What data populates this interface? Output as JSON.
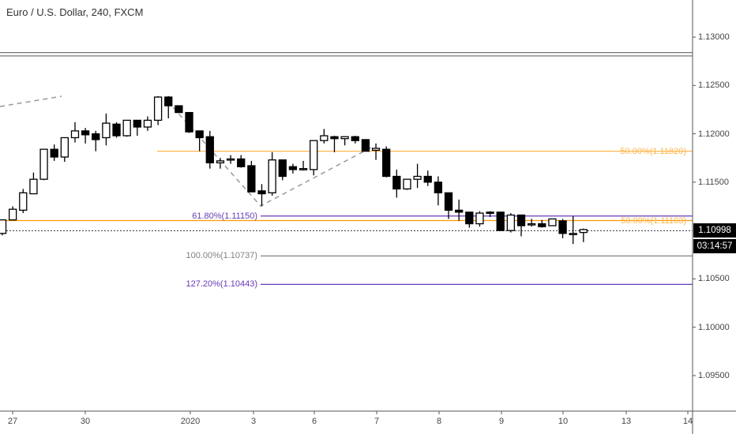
{
  "header": {
    "title": "Euro / U.S. Dollar, 240, FXCM"
  },
  "price_axis": {
    "ticks": [
      "1.13000",
      "1.12500",
      "1.12000",
      "1.11500",
      "1.10500",
      "1.10000",
      "1.09500"
    ],
    "tick_values": [
      1.13,
      1.125,
      1.12,
      1.115,
      1.105,
      1.1,
      1.095
    ]
  },
  "time_axis": {
    "ticks": [
      "27",
      "30",
      "2020",
      "3",
      "6",
      "7",
      "8",
      "9",
      "10",
      "13",
      "14"
    ]
  },
  "current_price": {
    "value": "1.10998",
    "countdown": "03:14:57"
  },
  "colors": {
    "bull": "#ffffff",
    "bear": "#000000",
    "fib_orange": "#ff9800",
    "fib_purple": "#673ab7",
    "fib_grey": "#808080"
  },
  "levels": {
    "orange_upper": {
      "label": "50.00%(1.11820)",
      "price": 1.1182
    },
    "orange_lower": {
      "label": "50.00%(1.11103)",
      "price": 1.11103
    },
    "fib_618": {
      "label": "61.80%(1.11150)",
      "price": 1.1115
    },
    "fib_100": {
      "label": "100.00%(1.10737)",
      "price": 1.10737
    },
    "fib_1272": {
      "label": "127.20%(1.10443)",
      "price": 1.10443
    },
    "top_double_line": {
      "prices": [
        1.1284,
        1.12805
      ]
    }
  },
  "chart_data": {
    "type": "candlestick",
    "title": "Euro / U.S. Dollar, 240, FXCM",
    "ylim": [
      1.0915,
      1.1338
    ],
    "candles": [
      [
        1.1097,
        1.1111,
        1.1095,
        1.1111
      ],
      [
        1.1111,
        1.1125,
        1.1111,
        1.1122
      ],
      [
        1.1121,
        1.1143,
        1.1118,
        1.1139
      ],
      [
        1.1138,
        1.116,
        1.1138,
        1.1153
      ],
      [
        1.1153,
        1.1184,
        1.1152,
        1.1184
      ],
      [
        1.1184,
        1.1189,
        1.1172,
        1.1176
      ],
      [
        1.1176,
        1.1196,
        1.1171,
        1.1196
      ],
      [
        1.1196,
        1.1212,
        1.1191,
        1.1203
      ],
      [
        1.1203,
        1.1206,
        1.119,
        1.1199
      ],
      [
        1.12,
        1.1203,
        1.1182,
        1.1194
      ],
      [
        1.1196,
        1.1221,
        1.1188,
        1.1211
      ],
      [
        1.121,
        1.1212,
        1.1196,
        1.1198
      ],
      [
        1.1198,
        1.1214,
        1.1197,
        1.1214
      ],
      [
        1.1214,
        1.1214,
        1.1198,
        1.1207
      ],
      [
        1.1207,
        1.1218,
        1.1203,
        1.1214
      ],
      [
        1.1214,
        1.1239,
        1.1209,
        1.1238
      ],
      [
        1.1238,
        1.1239,
        1.1216,
        1.1229
      ],
      [
        1.1229,
        1.1229,
        1.1222,
        1.1222
      ],
      [
        1.1222,
        1.1222,
        1.1201,
        1.1202
      ],
      [
        1.1203,
        1.1203,
        1.1182,
        1.1196
      ],
      [
        1.1197,
        1.1203,
        1.1164,
        1.117
      ],
      [
        1.117,
        1.1175,
        1.1164,
        1.1172
      ],
      [
        1.1173,
        1.1178,
        1.1169,
        1.1174
      ],
      [
        1.1174,
        1.1178,
        1.1165,
        1.1166
      ],
      [
        1.1167,
        1.1172,
        1.114,
        1.114
      ],
      [
        1.1141,
        1.1148,
        1.1125,
        1.1138
      ],
      [
        1.1139,
        1.1181,
        1.1136,
        1.1173
      ],
      [
        1.1173,
        1.1173,
        1.1152,
        1.1156
      ],
      [
        1.1166,
        1.1169,
        1.1159,
        1.1163
      ],
      [
        1.1164,
        1.1172,
        1.1162,
        1.1164
      ],
      [
        1.1163,
        1.1193,
        1.1157,
        1.1193
      ],
      [
        1.1193,
        1.1205,
        1.119,
        1.1198
      ],
      [
        1.1197,
        1.1198,
        1.1181,
        1.1195
      ],
      [
        1.1195,
        1.1197,
        1.1188,
        1.1197
      ],
      [
        1.1197,
        1.1198,
        1.119,
        1.1193
      ],
      [
        1.1194,
        1.1194,
        1.1182,
        1.1182
      ],
      [
        1.1183,
        1.119,
        1.1173,
        1.1185
      ],
      [
        1.1184,
        1.1187,
        1.1155,
        1.1156
      ],
      [
        1.1156,
        1.1163,
        1.1134,
        1.1143
      ],
      [
        1.1143,
        1.1153,
        1.1142,
        1.1153
      ],
      [
        1.1153,
        1.1169,
        1.1144,
        1.1156
      ],
      [
        1.1156,
        1.1162,
        1.1146,
        1.115
      ],
      [
        1.115,
        1.1156,
        1.1126,
        1.1139
      ],
      [
        1.1139,
        1.1139,
        1.1112,
        1.1121
      ],
      [
        1.1121,
        1.1132,
        1.111,
        1.1119
      ],
      [
        1.1119,
        1.1119,
        1.1103,
        1.1107
      ],
      [
        1.1107,
        1.112,
        1.1104,
        1.1118
      ],
      [
        1.1119,
        1.112,
        1.1114,
        1.1118
      ],
      [
        1.1119,
        1.1119,
        1.11,
        1.11
      ],
      [
        1.11,
        1.1118,
        1.1098,
        1.1116
      ],
      [
        1.1116,
        1.1116,
        1.1094,
        1.1105
      ],
      [
        1.1107,
        1.1112,
        1.1104,
        1.1107
      ],
      [
        1.1107,
        1.1111,
        1.1103,
        1.1104
      ],
      [
        1.1105,
        1.1112,
        1.1105,
        1.1112
      ],
      [
        1.111,
        1.1112,
        1.1092,
        1.1097
      ],
      [
        1.1097,
        1.1115,
        1.1086,
        1.1097
      ],
      [
        1.1098,
        1.1102,
        1.1088,
        1.1101
      ]
    ]
  }
}
